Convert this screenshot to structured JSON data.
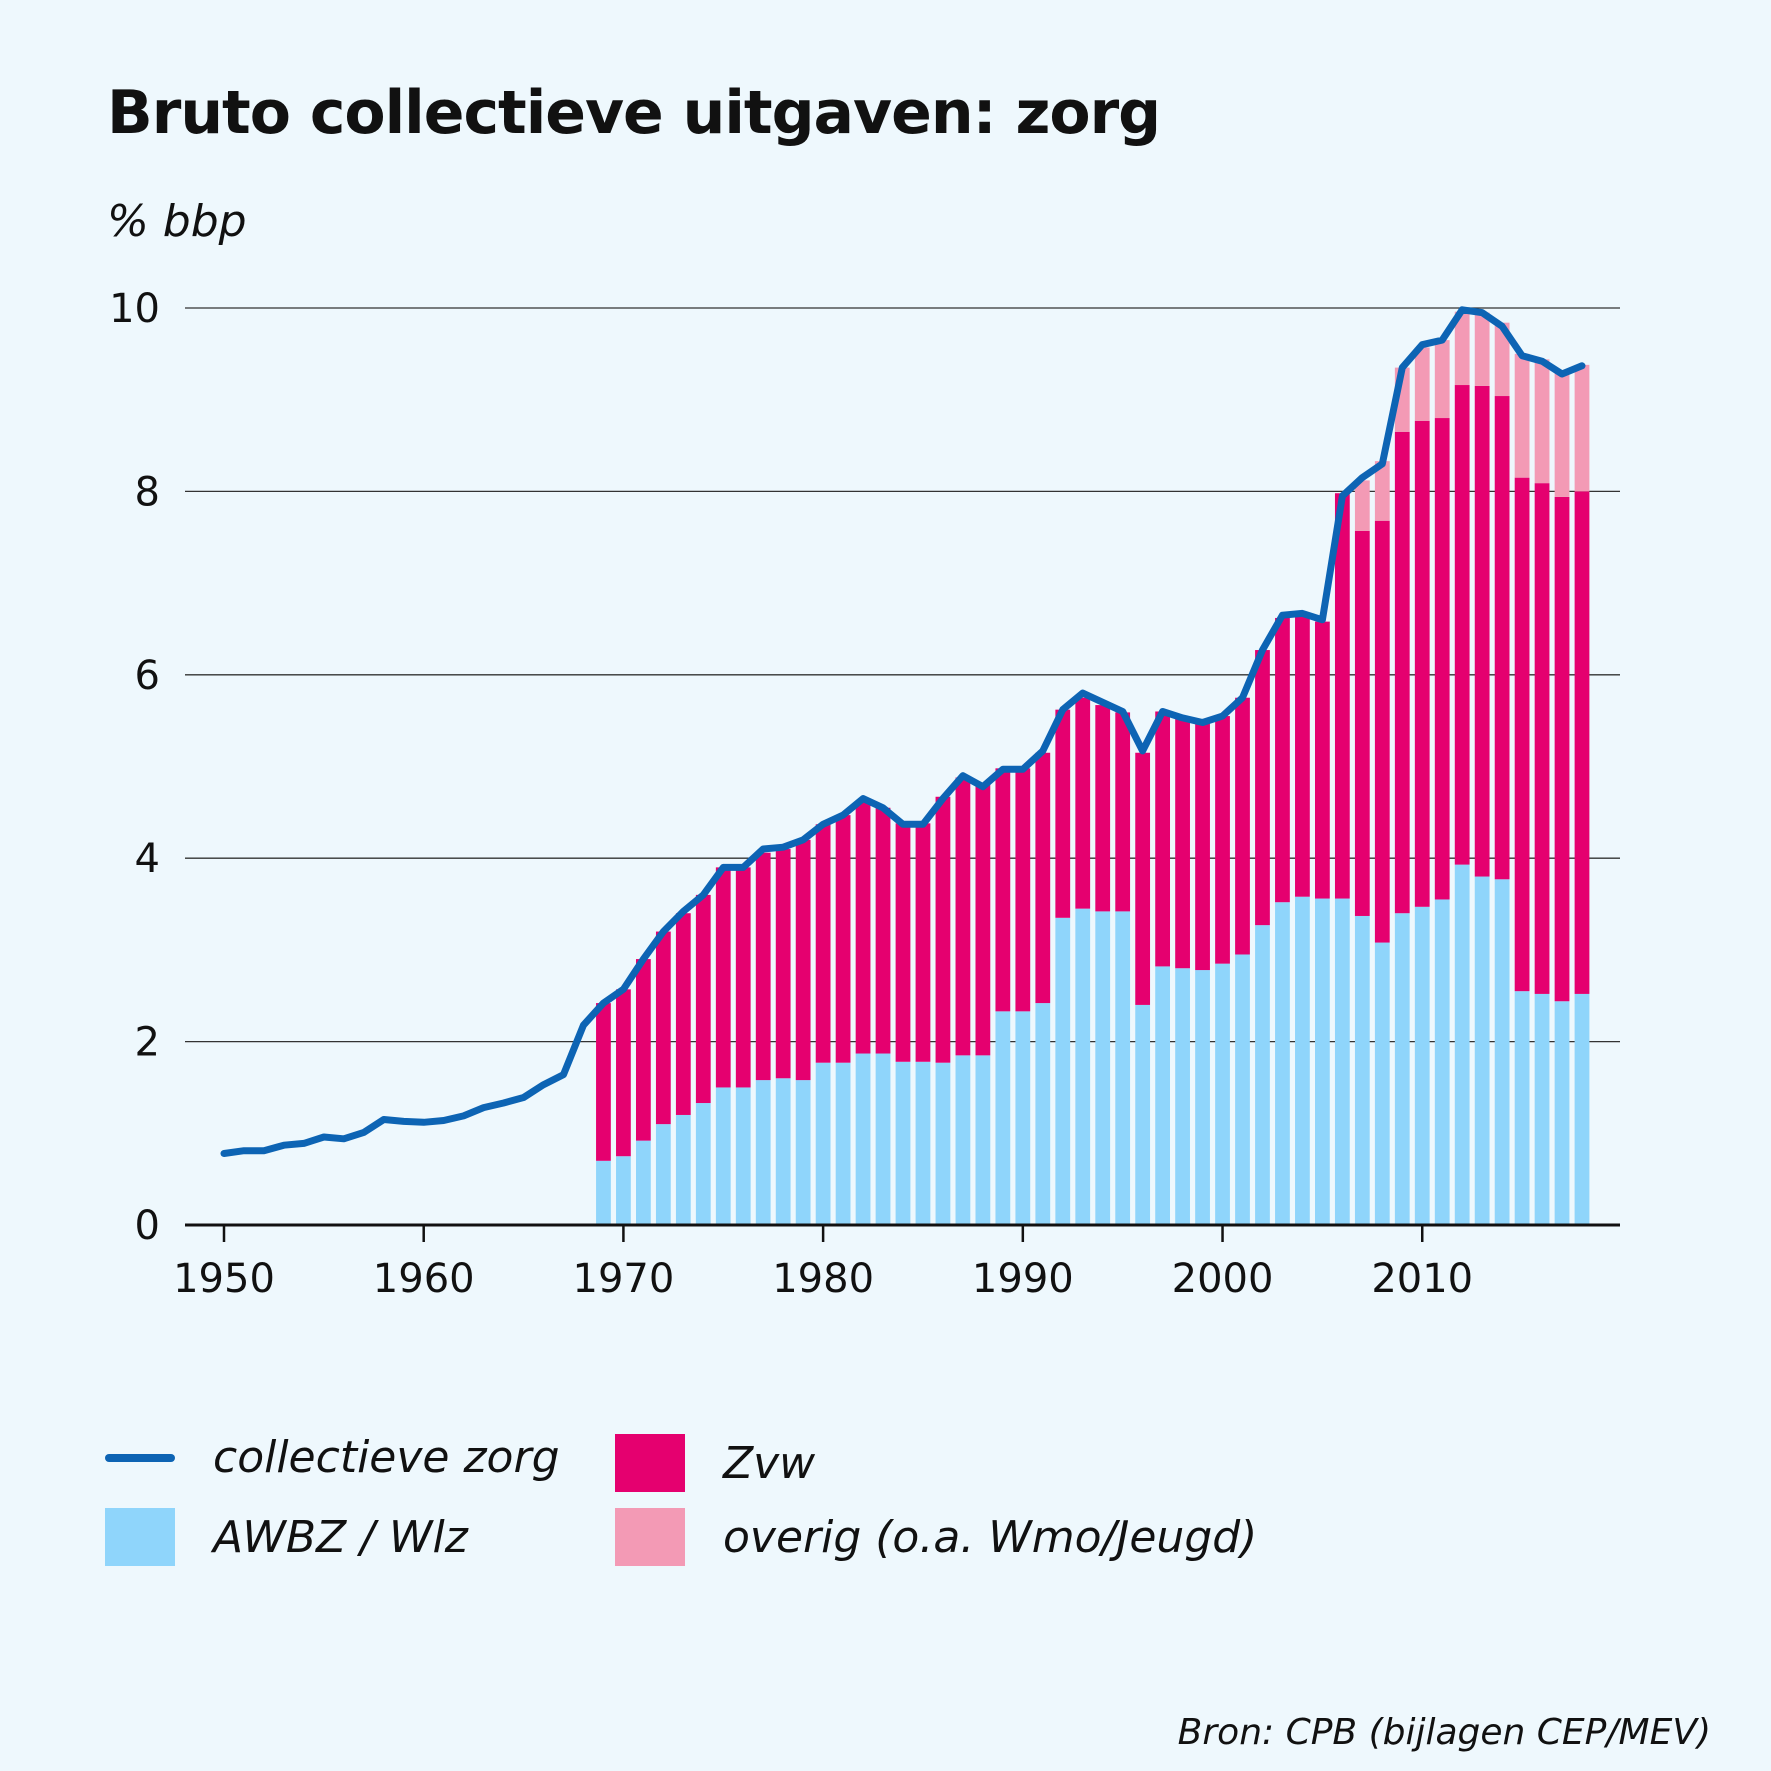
{
  "title": "Bruto collectieve uitgaven: zorg",
  "unit_label": "% bbp",
  "source": "Bron: CPB (bijlagen CEP/MEV)",
  "colors": {
    "background": "#eef8fd",
    "line": "#0d64b4",
    "awbz": "#8fd5fb",
    "zvw": "#e5006f",
    "overig": "#f39ab5",
    "grid": "#333333"
  },
  "legend": {
    "line": "collectieve zorg",
    "zvw": "Zvw",
    "awbz": "AWBZ / Wlz",
    "overig": "overig (o.a. Wmo/Jeugd)"
  },
  "chart_data": {
    "type": "bar",
    "stacked": true,
    "title": "Bruto collectieve uitgaven: zorg",
    "ylabel": "% bbp",
    "xlabel": "",
    "ylim": [
      0,
      10
    ],
    "xlim": [
      1950,
      2018
    ],
    "yticks": [
      "0",
      "2",
      "4",
      "6",
      "8",
      "10"
    ],
    "xticks": [
      "1950",
      "1960",
      "1970",
      "1980",
      "1990",
      "2000",
      "2010"
    ],
    "grid": true,
    "legend_position": "bottom",
    "bar_years": [
      1969,
      1970,
      1971,
      1972,
      1973,
      1974,
      1975,
      1976,
      1977,
      1978,
      1979,
      1980,
      1981,
      1982,
      1983,
      1984,
      1985,
      1986,
      1987,
      1988,
      1989,
      1990,
      1991,
      1992,
      1993,
      1994,
      1995,
      1996,
      1997,
      1998,
      1999,
      2000,
      2001,
      2002,
      2003,
      2004,
      2005,
      2006,
      2007,
      2008,
      2009,
      2010,
      2011,
      2012,
      2013,
      2014,
      2015,
      2016,
      2017,
      2018
    ],
    "series": [
      {
        "name": "AWBZ / Wlz",
        "kind": "bar",
        "values": [
          0.7,
          0.75,
          0.92,
          1.1,
          1.2,
          1.33,
          1.5,
          1.5,
          1.58,
          1.6,
          1.58,
          1.77,
          1.77,
          1.87,
          1.87,
          1.78,
          1.78,
          1.77,
          1.85,
          1.85,
          2.33,
          2.33,
          2.42,
          3.35,
          3.45,
          3.42,
          3.42,
          2.4,
          2.82,
          2.8,
          2.78,
          2.85,
          2.95,
          3.27,
          3.52,
          3.58,
          3.56,
          3.56,
          3.37,
          3.08,
          3.4,
          3.47,
          3.55,
          3.93,
          3.8,
          3.77,
          2.55,
          2.52,
          2.44,
          2.52
        ]
      },
      {
        "name": "Zvw",
        "kind": "bar",
        "values": [
          1.72,
          1.82,
          1.98,
          2.1,
          2.2,
          2.27,
          2.4,
          2.4,
          2.48,
          2.5,
          2.62,
          2.6,
          2.7,
          2.75,
          2.68,
          2.6,
          2.6,
          2.9,
          3.03,
          2.95,
          2.65,
          2.65,
          2.73,
          2.27,
          2.3,
          2.25,
          2.17,
          2.75,
          2.78,
          2.73,
          2.7,
          2.7,
          2.8,
          3.0,
          3.1,
          3.07,
          3.02,
          4.42,
          4.2,
          4.6,
          5.25,
          5.3,
          5.25,
          5.23,
          5.35,
          5.27,
          5.6,
          5.57,
          5.5,
          5.48
        ]
      },
      {
        "name": "overig (o.a. Wmo/Jeugd)",
        "kind": "bar",
        "values": [
          0,
          0,
          0,
          0,
          0,
          0,
          0,
          0,
          0,
          0,
          0,
          0,
          0,
          0,
          0,
          0,
          0,
          0,
          0,
          0,
          0,
          0,
          0,
          0,
          0,
          0,
          0,
          0,
          0,
          0,
          0,
          0,
          0,
          0,
          0,
          0,
          0,
          0,
          0.55,
          0.65,
          0.7,
          0.8,
          0.85,
          0.8,
          0.8,
          0.8,
          1.35,
          1.35,
          1.35,
          1.38
        ]
      },
      {
        "name": "collectieve zorg",
        "kind": "line",
        "x": [
          1950,
          1951,
          1952,
          1953,
          1954,
          1955,
          1956,
          1957,
          1958,
          1959,
          1960,
          1961,
          1962,
          1963,
          1964,
          1965,
          1966,
          1967,
          1968,
          1969,
          1970,
          1971,
          1972,
          1973,
          1974,
          1975,
          1976,
          1977,
          1978,
          1979,
          1980,
          1981,
          1982,
          1983,
          1984,
          1985,
          1986,
          1987,
          1988,
          1989,
          1990,
          1991,
          1992,
          1993,
          1994,
          1995,
          1996,
          1997,
          1998,
          1999,
          2000,
          2001,
          2002,
          2003,
          2004,
          2005,
          2006,
          2007,
          2008,
          2009,
          2010,
          2011,
          2012,
          2013,
          2014,
          2015,
          2016,
          2017,
          2018
        ],
        "values": [
          0.78,
          0.81,
          0.81,
          0.87,
          0.89,
          0.96,
          0.94,
          1.01,
          1.15,
          1.13,
          1.12,
          1.14,
          1.19,
          1.28,
          1.33,
          1.39,
          1.53,
          1.64,
          2.18,
          2.42,
          2.57,
          2.9,
          3.2,
          3.42,
          3.6,
          3.9,
          3.9,
          4.1,
          4.12,
          4.2,
          4.37,
          4.47,
          4.65,
          4.55,
          4.37,
          4.37,
          4.65,
          4.9,
          4.78,
          4.97,
          4.97,
          5.17,
          5.62,
          5.8,
          5.7,
          5.6,
          5.17,
          5.6,
          5.53,
          5.48,
          5.55,
          5.75,
          6.27,
          6.65,
          6.67,
          6.6,
          7.95,
          8.15,
          8.3,
          9.35,
          9.6,
          9.65,
          9.98,
          9.95,
          9.8,
          9.48,
          9.42,
          9.28,
          9.37
        ]
      }
    ]
  }
}
